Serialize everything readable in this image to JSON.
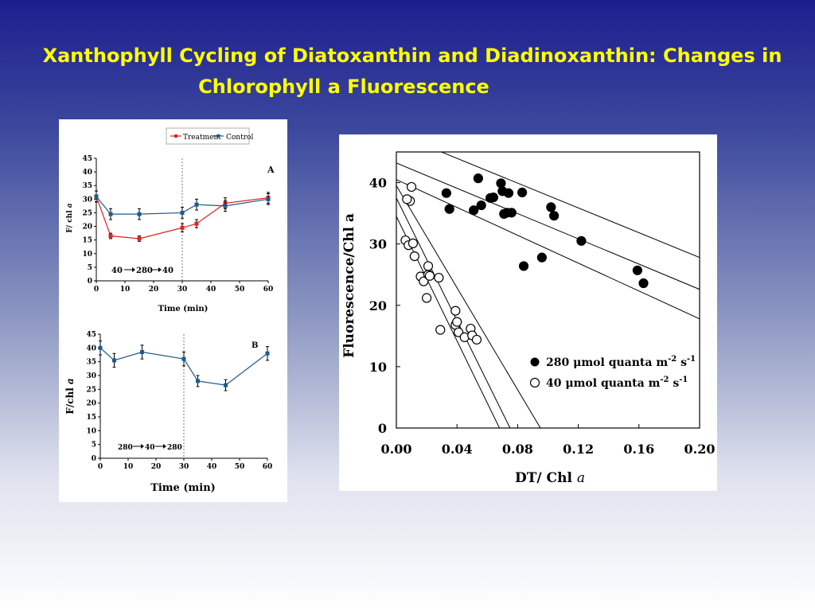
{
  "slide": {
    "title_line1": "Xanthophyll Cycling of Diatoxanthin and Diadinoxanthin: Changes in",
    "title_line2": "Chlorophyll a Fluorescence"
  },
  "colors": {
    "title": "#ffff00",
    "treatment": "#e0241c",
    "control": "#1f5a8a"
  },
  "chart_data": [
    {
      "type": "line",
      "panel_label": "A",
      "legend": [
        "Treatment",
        "Control"
      ],
      "xlabel": "Time (min)",
      "ylabel_main": "F/ chl ",
      "ylabel_italic": "a",
      "annotation": [
        "40",
        "280",
        "40"
      ],
      "xlim": [
        0,
        60
      ],
      "ylim": [
        0,
        45
      ],
      "x_ticks": [
        "0",
        "10",
        "20",
        "30",
        "40",
        "50",
        "60"
      ],
      "y_ticks": [
        "0",
        "5",
        "10",
        "15",
        "20",
        "25",
        "30",
        "35",
        "40",
        "45"
      ],
      "marker_x": 30,
      "series": [
        {
          "name": "Treatment",
          "x": [
            0,
            5,
            15,
            30,
            35,
            45,
            60
          ],
          "y": [
            31,
            16.5,
            15.5,
            19.5,
            21,
            28.5,
            30.5
          ],
          "err": [
            2,
            1,
            1,
            1.5,
            1.5,
            2,
            2
          ]
        },
        {
          "name": "Control",
          "x": [
            0,
            5,
            15,
            30,
            35,
            45,
            60
          ],
          "y": [
            31,
            24.5,
            24.5,
            25,
            28,
            27.5,
            30
          ],
          "err": [
            2,
            2,
            2,
            2,
            2,
            2,
            2
          ]
        }
      ]
    },
    {
      "type": "line",
      "panel_label": "B",
      "xlabel": "Time (min)",
      "ylabel_main": "F/chl ",
      "ylabel_italic": "a",
      "annotation": [
        "280",
        "40",
        "280"
      ],
      "xlim": [
        0,
        60
      ],
      "ylim": [
        0,
        45
      ],
      "x_ticks": [
        "0",
        "10",
        "20",
        "30",
        "40",
        "50",
        "60"
      ],
      "y_ticks": [
        "0",
        "5",
        "10",
        "15",
        "20",
        "25",
        "30",
        "35",
        "40",
        "45"
      ],
      "marker_x": 30,
      "series": [
        {
          "name": "Control",
          "x": [
            0,
            5,
            15,
            30,
            35,
            45,
            60
          ],
          "y": [
            40,
            35.5,
            38.5,
            36,
            28,
            26.5,
            38
          ],
          "err": [
            2.5,
            2.5,
            2.5,
            2.5,
            2,
            2,
            2.5
          ]
        }
      ]
    },
    {
      "type": "scatter",
      "xlabel_main": "DT/ Chl ",
      "xlabel_italic": "a",
      "ylabel": "Fluorescence/Chl a",
      "xlim": [
        0,
        0.2
      ],
      "ylim": [
        0,
        45
      ],
      "x_ticks": [
        "0.00",
        "0.04",
        "0.08",
        "0.12",
        "0.16",
        "0.20"
      ],
      "y_ticks": [
        "0",
        "10",
        "20",
        "30",
        "40"
      ],
      "legend": [
        {
          "label": "280 μmol quanta m",
          "sup1": "-2",
          "mid": " s",
          "sup2": "-1",
          "filled": true
        },
        {
          "label": "40 μmol quanta m",
          "sup1": "-2",
          "mid": " s",
          "sup2": "-1",
          "filled": false
        }
      ],
      "series": [
        {
          "name": "280",
          "filled": true,
          "x": [
            0.035,
            0.033,
            0.051,
            0.054,
            0.056,
            0.062,
            0.064,
            0.069,
            0.07,
            0.073,
            0.074,
            0.071,
            0.076,
            0.083,
            0.084,
            0.096,
            0.102,
            0.104,
            0.122,
            0.159,
            0.163
          ],
          "y": [
            35.7,
            38.3,
            35.5,
            40.7,
            36.3,
            37.5,
            37.6,
            39.9,
            38.6,
            35.1,
            38.3,
            34.9,
            35.1,
            38.4,
            26.4,
            27.8,
            36.0,
            34.6,
            30.5,
            25.7,
            23.6
          ]
        },
        {
          "name": "40",
          "filled": false,
          "x": [
            0.006,
            0.008,
            0.01,
            0.009,
            0.007,
            0.011,
            0.012,
            0.016,
            0.018,
            0.02,
            0.021,
            0.021,
            0.022,
            0.028,
            0.029,
            0.039,
            0.039,
            0.04,
            0.041,
            0.045,
            0.049,
            0.05,
            0.053
          ],
          "y": [
            30.6,
            29.8,
            39.3,
            37.0,
            37.3,
            30.1,
            28.0,
            24.7,
            23.9,
            21.2,
            26.4,
            25.0,
            24.8,
            24.5,
            16.0,
            19.1,
            16.8,
            17.3,
            15.6,
            14.8,
            16.2,
            15.1,
            14.4
          ]
        }
      ],
      "fit_lines": [
        {
          "x": [
            0.0,
            0.2
          ],
          "y": [
            40.5,
            17.8
          ]
        },
        {
          "x": [
            0.0,
            0.2
          ],
          "y": [
            43.2,
            22.6
          ]
        },
        {
          "x": [
            0.0,
            0.2
          ],
          "y": [
            48.0,
            27.8
          ]
        },
        {
          "x": [
            0.0,
            0.068
          ],
          "y": [
            34.5,
            0
          ]
        },
        {
          "x": [
            0.0,
            0.075
          ],
          "y": [
            37.5,
            0
          ]
        },
        {
          "x": [
            0.0,
            0.095
          ],
          "y": [
            39.5,
            0
          ]
        }
      ]
    }
  ]
}
